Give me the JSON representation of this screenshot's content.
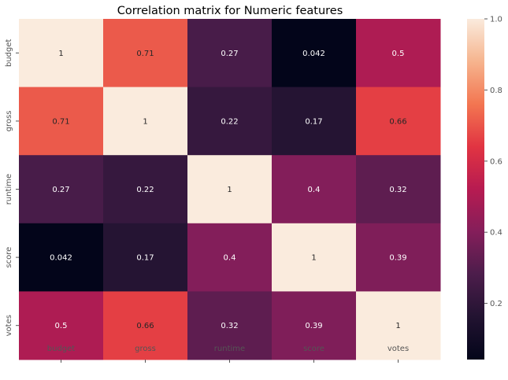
{
  "chart_data": {
    "type": "heatmap",
    "title": "Correlation matrix for Numeric features",
    "x_categories": [
      "budget",
      "gross",
      "runtime",
      "score",
      "votes"
    ],
    "y_categories": [
      "budget",
      "gross",
      "runtime",
      "score",
      "votes"
    ],
    "values": [
      [
        1,
        0.71,
        0.27,
        0.042,
        0.5
      ],
      [
        0.71,
        1,
        0.22,
        0.17,
        0.66
      ],
      [
        0.27,
        0.22,
        1,
        0.4,
        0.32
      ],
      [
        0.042,
        0.17,
        0.4,
        1,
        0.39
      ],
      [
        0.5,
        0.66,
        0.32,
        0.39,
        1
      ]
    ],
    "cell_labels": [
      [
        "1",
        "0.71",
        "0.27",
        "0.042",
        "0.5"
      ],
      [
        "0.71",
        "1",
        "0.22",
        "0.17",
        "0.66"
      ],
      [
        "0.27",
        "0.22",
        "1",
        "0.4",
        "0.32"
      ],
      [
        "0.042",
        "0.17",
        "0.4",
        "1",
        "0.39"
      ],
      [
        "0.5",
        "0.66",
        "0.32",
        "0.39",
        "1"
      ]
    ],
    "colorbar": {
      "range": [
        0.042,
        1.0
      ],
      "ticks": [
        0.2,
        0.4,
        0.6,
        0.8,
        1.0
      ],
      "tick_labels": [
        "0.2",
        "0.4",
        "0.6",
        "0.8",
        "1.0"
      ],
      "colormap": "rocket"
    },
    "grid": false
  }
}
